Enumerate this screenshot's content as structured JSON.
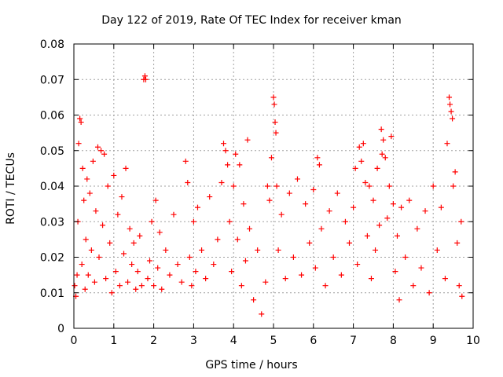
{
  "chart_data": {
    "type": "scatter",
    "title": "Day 122 of 2019, Rate Of TEC Index for receiver kman",
    "xlabel": "GPS time / hours",
    "ylabel": "ROTI / TECUs",
    "xlim": [
      0,
      10
    ],
    "ylim": [
      0,
      0.08
    ],
    "x_ticks": [
      "0",
      "1",
      "2",
      "3",
      "4",
      "5",
      "6",
      "7",
      "8",
      "9",
      "10"
    ],
    "y_ticks": [
      "0",
      "0.01",
      "0.02",
      "0.03",
      "0.04",
      "0.05",
      "0.06",
      "0.07",
      "0.08"
    ],
    "grid": true,
    "marker": "+",
    "marker_color": "#ff0000",
    "series": [
      {
        "name": "ROTI",
        "points": [
          [
            0.02,
            0.012
          ],
          [
            0.05,
            0.009
          ],
          [
            0.08,
            0.015
          ],
          [
            0.1,
            0.03
          ],
          [
            0.12,
            0.052
          ],
          [
            0.15,
            0.059
          ],
          [
            0.18,
            0.058
          ],
          [
            0.2,
            0.018
          ],
          [
            0.22,
            0.045
          ],
          [
            0.25,
            0.036
          ],
          [
            0.28,
            0.011
          ],
          [
            0.3,
            0.025
          ],
          [
            0.33,
            0.042
          ],
          [
            0.36,
            0.015
          ],
          [
            0.4,
            0.038
          ],
          [
            0.44,
            0.022
          ],
          [
            0.48,
            0.047
          ],
          [
            0.52,
            0.013
          ],
          [
            0.55,
            0.033
          ],
          [
            0.6,
            0.051
          ],
          [
            0.63,
            0.02
          ],
          [
            0.68,
            0.05
          ],
          [
            0.72,
            0.029
          ],
          [
            0.76,
            0.049
          ],
          [
            0.8,
            0.014
          ],
          [
            0.85,
            0.04
          ],
          [
            0.9,
            0.024
          ],
          [
            0.95,
            0.01
          ],
          [
            1.0,
            0.043
          ],
          [
            1.05,
            0.016
          ],
          [
            1.1,
            0.032
          ],
          [
            1.15,
            0.012
          ],
          [
            1.2,
            0.037
          ],
          [
            1.25,
            0.021
          ],
          [
            1.3,
            0.045
          ],
          [
            1.35,
            0.013
          ],
          [
            1.4,
            0.028
          ],
          [
            1.45,
            0.018
          ],
          [
            1.5,
            0.024
          ],
          [
            1.55,
            0.011
          ],
          [
            1.6,
            0.016
          ],
          [
            1.65,
            0.026
          ],
          [
            1.7,
            0.012
          ],
          [
            1.75,
            0.07
          ],
          [
            1.78,
            0.071
          ],
          [
            1.8,
            0.07
          ],
          [
            1.85,
            0.014
          ],
          [
            1.9,
            0.019
          ],
          [
            1.95,
            0.03
          ],
          [
            2.0,
            0.012
          ],
          [
            2.05,
            0.036
          ],
          [
            2.1,
            0.017
          ],
          [
            2.15,
            0.027
          ],
          [
            2.2,
            0.011
          ],
          [
            2.3,
            0.022
          ],
          [
            2.4,
            0.015
          ],
          [
            2.5,
            0.032
          ],
          [
            2.6,
            0.018
          ],
          [
            2.7,
            0.013
          ],
          [
            2.8,
            0.047
          ],
          [
            2.85,
            0.041
          ],
          [
            2.9,
            0.02
          ],
          [
            2.95,
            0.012
          ],
          [
            3.0,
            0.03
          ],
          [
            3.05,
            0.016
          ],
          [
            3.1,
            0.034
          ],
          [
            3.2,
            0.022
          ],
          [
            3.3,
            0.014
          ],
          [
            3.4,
            0.037
          ],
          [
            3.5,
            0.018
          ],
          [
            3.6,
            0.025
          ],
          [
            3.7,
            0.041
          ],
          [
            3.75,
            0.052
          ],
          [
            3.8,
            0.05
          ],
          [
            3.85,
            0.046
          ],
          [
            3.9,
            0.03
          ],
          [
            3.95,
            0.016
          ],
          [
            4.0,
            0.04
          ],
          [
            4.05,
            0.049
          ],
          [
            4.1,
            0.025
          ],
          [
            4.15,
            0.046
          ],
          [
            4.2,
            0.012
          ],
          [
            4.25,
            0.035
          ],
          [
            4.3,
            0.019
          ],
          [
            4.35,
            0.053
          ],
          [
            4.4,
            0.028
          ],
          [
            4.5,
            0.008
          ],
          [
            4.6,
            0.022
          ],
          [
            4.7,
            0.004
          ],
          [
            4.8,
            0.013
          ],
          [
            4.85,
            0.04
          ],
          [
            4.9,
            0.036
          ],
          [
            4.95,
            0.048
          ],
          [
            5.0,
            0.065
          ],
          [
            5.02,
            0.063
          ],
          [
            5.04,
            0.058
          ],
          [
            5.06,
            0.055
          ],
          [
            5.08,
            0.04
          ],
          [
            5.12,
            0.022
          ],
          [
            5.2,
            0.032
          ],
          [
            5.3,
            0.014
          ],
          [
            5.4,
            0.038
          ],
          [
            5.5,
            0.02
          ],
          [
            5.6,
            0.042
          ],
          [
            5.7,
            0.015
          ],
          [
            5.8,
            0.035
          ],
          [
            5.9,
            0.024
          ],
          [
            6.0,
            0.039
          ],
          [
            6.05,
            0.017
          ],
          [
            6.1,
            0.048
          ],
          [
            6.15,
            0.046
          ],
          [
            6.2,
            0.028
          ],
          [
            6.3,
            0.012
          ],
          [
            6.4,
            0.033
          ],
          [
            6.5,
            0.02
          ],
          [
            6.6,
            0.038
          ],
          [
            6.7,
            0.015
          ],
          [
            6.8,
            0.03
          ],
          [
            6.9,
            0.024
          ],
          [
            7.0,
            0.034
          ],
          [
            7.05,
            0.045
          ],
          [
            7.1,
            0.018
          ],
          [
            7.15,
            0.051
          ],
          [
            7.2,
            0.047
          ],
          [
            7.25,
            0.052
          ],
          [
            7.3,
            0.041
          ],
          [
            7.35,
            0.026
          ],
          [
            7.4,
            0.04
          ],
          [
            7.45,
            0.014
          ],
          [
            7.5,
            0.036
          ],
          [
            7.55,
            0.022
          ],
          [
            7.6,
            0.045
          ],
          [
            7.65,
            0.029
          ],
          [
            7.7,
            0.056
          ],
          [
            7.72,
            0.049
          ],
          [
            7.75,
            0.053
          ],
          [
            7.8,
            0.048
          ],
          [
            7.85,
            0.031
          ],
          [
            7.9,
            0.04
          ],
          [
            7.95,
            0.054
          ],
          [
            8.0,
            0.035
          ],
          [
            8.05,
            0.016
          ],
          [
            8.1,
            0.026
          ],
          [
            8.15,
            0.008
          ],
          [
            8.2,
            0.034
          ],
          [
            8.3,
            0.02
          ],
          [
            8.4,
            0.036
          ],
          [
            8.5,
            0.012
          ],
          [
            8.6,
            0.028
          ],
          [
            8.7,
            0.017
          ],
          [
            8.8,
            0.033
          ],
          [
            8.9,
            0.01
          ],
          [
            9.0,
            0.04
          ],
          [
            9.1,
            0.022
          ],
          [
            9.2,
            0.034
          ],
          [
            9.3,
            0.014
          ],
          [
            9.35,
            0.052
          ],
          [
            9.4,
            0.065
          ],
          [
            9.42,
            0.063
          ],
          [
            9.45,
            0.061
          ],
          [
            9.48,
            0.059
          ],
          [
            9.5,
            0.04
          ],
          [
            9.55,
            0.044
          ],
          [
            9.6,
            0.024
          ],
          [
            9.65,
            0.012
          ],
          [
            9.7,
            0.03
          ],
          [
            9.72,
            0.009
          ]
        ]
      }
    ]
  }
}
